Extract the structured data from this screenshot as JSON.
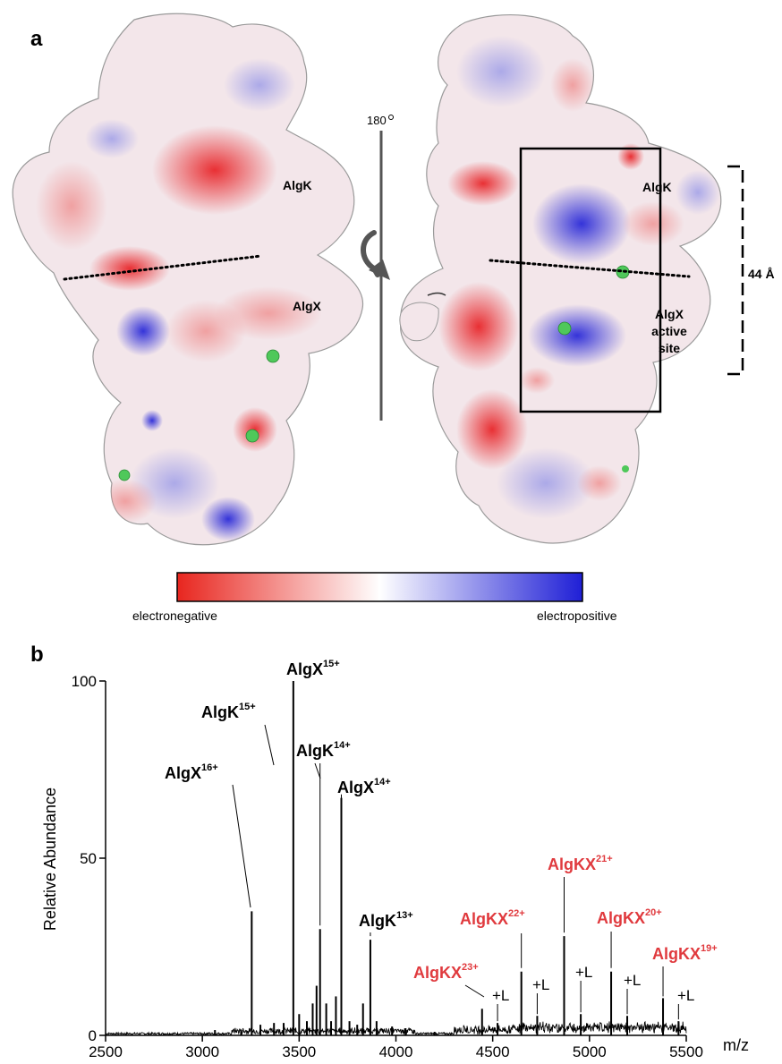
{
  "panel_a": {
    "letter": "a",
    "rotation_label": "180",
    "left_labels": {
      "algk": "AlgK",
      "algx": "AlgX"
    },
    "right_labels": {
      "algk": "AlgK",
      "active_line1": "AlgX",
      "active_line2": "active",
      "active_line3": "site"
    },
    "distance_label": "44 Å",
    "colorbar": {
      "left": "electronegative",
      "right": "electropositive",
      "neg_color": "#e8261f",
      "mid_color": "#ffffff",
      "pos_color": "#1f1fd6"
    }
  },
  "panel_b": {
    "letter": "b",
    "peak_labels": [
      {
        "id": "algx16",
        "base": "AlgX",
        "sup": "16+",
        "color": "#000000"
      },
      {
        "id": "algk15",
        "base": "AlgK",
        "sup": "15+",
        "color": "#000000"
      },
      {
        "id": "algx15",
        "base": "AlgX",
        "sup": "15+",
        "color": "#000000"
      },
      {
        "id": "algk14",
        "base": "AlgK",
        "sup": "14+",
        "color": "#000000"
      },
      {
        "id": "algx14",
        "base": "AlgX",
        "sup": "14+",
        "color": "#000000"
      },
      {
        "id": "algk13",
        "base": "AlgK",
        "sup": "13+",
        "color": "#000000"
      },
      {
        "id": "algkx23",
        "base": "AlgKX",
        "sup": "23+",
        "color": "#e03a3e"
      },
      {
        "id": "algkx22",
        "base": "AlgKX",
        "sup": "22+",
        "color": "#e03a3e"
      },
      {
        "id": "algkx21",
        "base": "AlgKX",
        "sup": "21+",
        "color": "#e03a3e"
      },
      {
        "id": "algkx20",
        "base": "AlgKX",
        "sup": "20+",
        "color": "#e03a3e"
      },
      {
        "id": "algkx19",
        "base": "AlgKX",
        "sup": "19+",
        "color": "#e03a3e"
      }
    ],
    "ligand_label": "+L"
  },
  "chart_data": {
    "type": "line",
    "title": "",
    "xlabel": "m/z",
    "ylabel": "Relative Abundance",
    "xlim": [
      2500,
      5500
    ],
    "ylim": [
      0,
      100
    ],
    "x_ticks": [
      2500,
      3000,
      3500,
      4000,
      4500,
      5000,
      5500
    ],
    "y_ticks": [
      0,
      50,
      100
    ],
    "peaks": [
      {
        "x": 3065,
        "y": 1.5
      },
      {
        "x": 3200,
        "y": 1.5
      },
      {
        "x": 3255,
        "y": 35
      },
      {
        "x": 3300,
        "y": 3
      },
      {
        "x": 3370,
        "y": 3.5
      },
      {
        "x": 3420,
        "y": 3.5
      },
      {
        "x": 3470,
        "y": 100
      },
      {
        "x": 3500,
        "y": 6
      },
      {
        "x": 3540,
        "y": 4
      },
      {
        "x": 3570,
        "y": 9
      },
      {
        "x": 3590,
        "y": 14
      },
      {
        "x": 3608,
        "y": 30
      },
      {
        "x": 3640,
        "y": 9
      },
      {
        "x": 3665,
        "y": 4
      },
      {
        "x": 3690,
        "y": 11
      },
      {
        "x": 3718,
        "y": 67
      },
      {
        "x": 3760,
        "y": 4
      },
      {
        "x": 3800,
        "y": 3
      },
      {
        "x": 3830,
        "y": 9
      },
      {
        "x": 3868,
        "y": 27
      },
      {
        "x": 3900,
        "y": 4
      },
      {
        "x": 3980,
        "y": 2.5
      },
      {
        "x": 4050,
        "y": 2
      },
      {
        "x": 4200,
        "y": 1
      },
      {
        "x": 4445,
        "y": 7.5
      },
      {
        "x": 4525,
        "y": 3.5
      },
      {
        "x": 4648,
        "y": 18
      },
      {
        "x": 4730,
        "y": 5.5
      },
      {
        "x": 4869,
        "y": 28
      },
      {
        "x": 4955,
        "y": 6
      },
      {
        "x": 5112,
        "y": 18
      },
      {
        "x": 5195,
        "y": 5.5
      },
      {
        "x": 5380,
        "y": 10.5
      },
      {
        "x": 5460,
        "y": 4
      }
    ]
  }
}
